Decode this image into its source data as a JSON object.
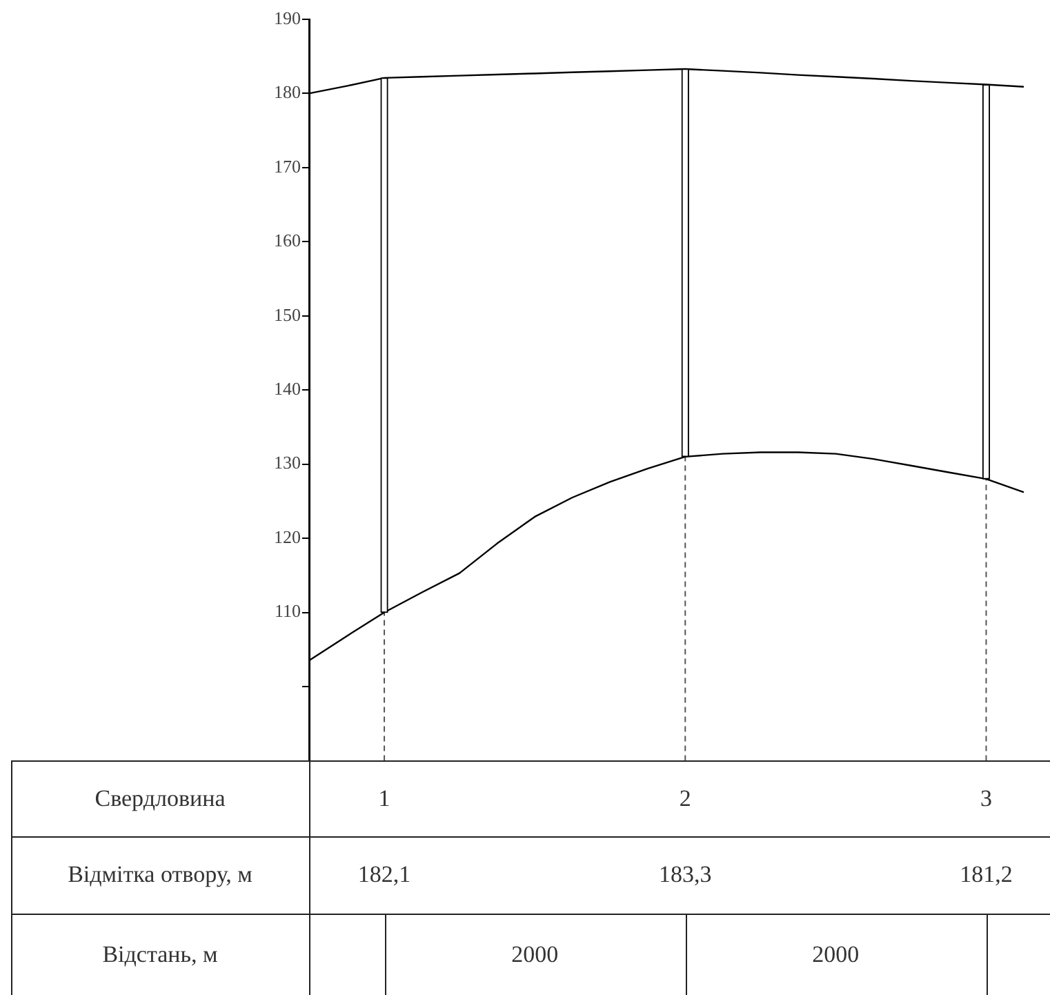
{
  "chart_data": {
    "type": "line",
    "categories": [
      null,
      null,
      "1",
      null,
      null,
      null,
      null,
      null,
      null,
      null,
      "2",
      null,
      null,
      null,
      null,
      null,
      null,
      null,
      "3",
      null
    ],
    "series": [
      {
        "color": "#000000",
        "values": [
          180,
          181.0,
          182.1,
          182.25,
          182.4,
          182.55,
          182.7,
          182.85,
          183.0,
          183.15,
          183.3,
          183.05,
          182.8,
          182.5,
          182.25,
          182.0,
          181.7,
          181.45,
          181.2,
          180.9
        ]
      },
      {
        "color": "#000000",
        "values": [
          103.5,
          106.8,
          110,
          112.7,
          115.3,
          119.3,
          122.9,
          125.5,
          127.6,
          129.4,
          131,
          131.4,
          131.6,
          131.6,
          131.4,
          130.7,
          129.8,
          128.9,
          128,
          126.2
        ]
      },
      {
        "type": "bar",
        "color": "#ffffff",
        "base": [
          null,
          null,
          110,
          null,
          null,
          null,
          null,
          null,
          null,
          null,
          131,
          null,
          null,
          null,
          null,
          null,
          null,
          null,
          128,
          null
        ],
        "values": [
          null,
          null,
          72.1,
          null,
          null,
          null,
          null,
          null,
          null,
          null,
          52.3,
          null,
          null,
          null,
          null,
          null,
          null,
          null,
          53.2,
          null
        ],
        "value_labels": [
          null,
          null,
          "182,1",
          null,
          null,
          null,
          null,
          null,
          null,
          null,
          "183,3",
          null,
          null,
          null,
          null,
          null,
          null,
          null,
          "181,2",
          null
        ]
      }
    ],
    "ylim": [
      90,
      190
    ],
    "yticks": [
      {
        "value": 100,
        "label": null
      },
      110,
      120,
      130,
      140,
      150,
      160,
      170,
      180,
      190
    ],
    "grid": false,
    "ref_lines": [
      {
        "axis": "x",
        "value": "1",
        "line_style": "dashed",
        "color": "#555555"
      },
      {
        "axis": "x",
        "value": "2",
        "line_style": "dashed",
        "color": "#555555"
      },
      {
        "axis": "x",
        "value": "3",
        "line_style": "dashed",
        "color": "#555555"
      }
    ],
    "annotations": [
      "Свердловина",
      "Відмітка отвору, м",
      "Відстань, м",
      "2000",
      "2000"
    ]
  }
}
